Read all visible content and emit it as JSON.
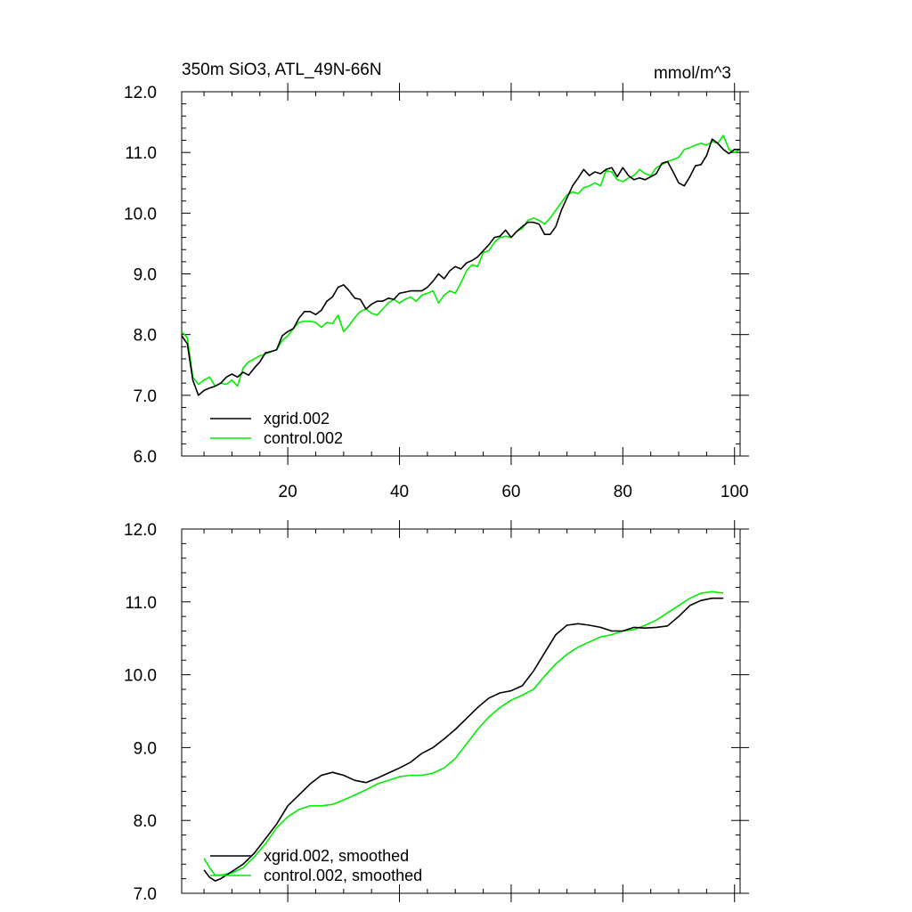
{
  "chart_data": [
    {
      "type": "line",
      "title": "350m SiO3, ATL_49N-66N",
      "units": "mmol/m^3",
      "xlabel": "",
      "ylabel": "",
      "xlim": [
        1,
        101
      ],
      "ylim": [
        6.0,
        12.0
      ],
      "xticks": [
        20,
        40,
        60,
        80,
        100
      ],
      "xtick_labels": [
        "20",
        "40",
        "60",
        "80",
        "100"
      ],
      "yticks": [
        6.0,
        7.0,
        8.0,
        9.0,
        10.0,
        11.0,
        12.0
      ],
      "ytick_labels": [
        "6.0",
        "7.0",
        "8.0",
        "9.0",
        "10.0",
        "11.0",
        "12.0"
      ],
      "legend_position": "bottom-left",
      "series": [
        {
          "name": "xgrid.002",
          "color": "#000000",
          "x": [
            1,
            2,
            3,
            4,
            5,
            6,
            7,
            8,
            9,
            10,
            11,
            12,
            13,
            14,
            15,
            16,
            17,
            18,
            19,
            20,
            21,
            22,
            23,
            24,
            25,
            26,
            27,
            28,
            29,
            30,
            31,
            32,
            33,
            34,
            35,
            36,
            37,
            38,
            39,
            40,
            41,
            42,
            43,
            44,
            45,
            46,
            47,
            48,
            49,
            50,
            51,
            52,
            53,
            54,
            55,
            56,
            57,
            58,
            59,
            60,
            61,
            62,
            63,
            64,
            65,
            66,
            67,
            68,
            69,
            70,
            71,
            72,
            73,
            74,
            75,
            76,
            77,
            78,
            79,
            80,
            81,
            82,
            83,
            84,
            85,
            86,
            87,
            88,
            89,
            90,
            91,
            92,
            93,
            94,
            95,
            96,
            97,
            98,
            99,
            100,
            101
          ],
          "values": [
            7.98,
            7.85,
            7.25,
            7.0,
            7.08,
            7.12,
            7.15,
            7.2,
            7.3,
            7.35,
            7.3,
            7.38,
            7.33,
            7.45,
            7.55,
            7.7,
            7.72,
            7.75,
            7.98,
            8.05,
            8.1,
            8.27,
            8.38,
            8.38,
            8.33,
            8.4,
            8.55,
            8.62,
            8.78,
            8.82,
            8.72,
            8.6,
            8.58,
            8.42,
            8.5,
            8.55,
            8.55,
            8.6,
            8.58,
            8.68,
            8.7,
            8.72,
            8.72,
            8.72,
            8.78,
            8.88,
            9.0,
            8.92,
            9.05,
            9.12,
            9.08,
            9.18,
            9.22,
            9.28,
            9.38,
            9.48,
            9.6,
            9.62,
            9.72,
            9.6,
            9.7,
            9.78,
            9.85,
            9.85,
            9.82,
            9.65,
            9.65,
            9.78,
            10.05,
            10.25,
            10.45,
            10.58,
            10.72,
            10.62,
            10.68,
            10.65,
            10.72,
            10.75,
            10.6,
            10.75,
            10.62,
            10.55,
            10.58,
            10.55,
            10.6,
            10.65,
            10.82,
            10.85,
            10.68,
            10.5,
            10.45,
            10.6,
            10.78,
            10.8,
            10.95,
            11.22,
            11.15,
            11.05,
            10.98,
            11.05,
            11.05
          ]
        },
        {
          "name": "control.002",
          "color": "#00ee00",
          "x": [
            1,
            2,
            3,
            4,
            5,
            6,
            7,
            8,
            9,
            10,
            11,
            12,
            13,
            14,
            15,
            16,
            17,
            18,
            19,
            20,
            21,
            22,
            23,
            24,
            25,
            26,
            27,
            28,
            29,
            30,
            31,
            32,
            33,
            34,
            35,
            36,
            37,
            38,
            39,
            40,
            41,
            42,
            43,
            44,
            45,
            46,
            47,
            48,
            49,
            50,
            51,
            52,
            53,
            54,
            55,
            56,
            57,
            58,
            59,
            60,
            61,
            62,
            63,
            64,
            65,
            66,
            67,
            68,
            69,
            70,
            71,
            72,
            73,
            74,
            75,
            76,
            77,
            78,
            79,
            80,
            81,
            82,
            83,
            84,
            85,
            86,
            87,
            88,
            89,
            90,
            91,
            92,
            93,
            94,
            95,
            96,
            97,
            98,
            99,
            100,
            101
          ],
          "values": [
            8.05,
            7.95,
            7.3,
            7.18,
            7.25,
            7.3,
            7.15,
            7.2,
            7.18,
            7.25,
            7.15,
            7.45,
            7.55,
            7.6,
            7.65,
            7.68,
            7.72,
            7.75,
            7.9,
            7.98,
            8.1,
            8.2,
            8.22,
            8.22,
            8.2,
            8.12,
            8.2,
            8.18,
            8.32,
            8.05,
            8.15,
            8.28,
            8.38,
            8.42,
            8.35,
            8.32,
            8.42,
            8.52,
            8.58,
            8.52,
            8.58,
            8.62,
            8.55,
            8.65,
            8.68,
            8.72,
            8.52,
            8.65,
            8.72,
            8.68,
            8.85,
            9.05,
            9.15,
            9.12,
            9.35,
            9.38,
            9.52,
            9.6,
            9.62,
            9.6,
            9.7,
            9.75,
            9.88,
            9.92,
            9.88,
            9.82,
            9.92,
            10.05,
            10.18,
            10.3,
            10.35,
            10.32,
            10.42,
            10.45,
            10.5,
            10.45,
            10.7,
            10.68,
            10.55,
            10.52,
            10.58,
            10.62,
            10.72,
            10.65,
            10.62,
            10.75,
            10.8,
            10.85,
            10.88,
            10.92,
            11.05,
            11.08,
            11.12,
            11.15,
            11.12,
            11.18,
            11.15,
            11.28,
            11.05,
            11.0,
            11.05
          ]
        }
      ]
    },
    {
      "type": "line",
      "title": "",
      "xlabel": "",
      "ylabel": "",
      "xlim": [
        1,
        101
      ],
      "ylim": [
        7.0,
        12.0
      ],
      "xticks": [
        20,
        40,
        60,
        80,
        100
      ],
      "xtick_labels": [],
      "yticks": [
        7.0,
        8.0,
        9.0,
        10.0,
        11.0,
        12.0
      ],
      "ytick_labels": [
        "7.0",
        "8.0",
        "9.0",
        "10.0",
        "11.0",
        "12.0"
      ],
      "legend_position": "bottom-left",
      "series": [
        {
          "name": "xgrid.002, smoothed",
          "color": "#000000",
          "x": [
            5,
            6,
            7,
            8,
            10,
            12,
            14,
            16,
            18,
            20,
            22,
            24,
            26,
            28,
            30,
            32,
            34,
            36,
            38,
            40,
            42,
            44,
            46,
            48,
            50,
            52,
            54,
            56,
            58,
            60,
            62,
            64,
            66,
            68,
            70,
            72,
            74,
            76,
            78,
            80,
            82,
            84,
            86,
            88,
            90,
            92,
            94,
            96,
            98
          ],
          "values": [
            7.32,
            7.22,
            7.17,
            7.2,
            7.3,
            7.4,
            7.55,
            7.75,
            7.95,
            8.2,
            8.35,
            8.5,
            8.62,
            8.66,
            8.62,
            8.55,
            8.52,
            8.58,
            8.65,
            8.72,
            8.8,
            8.92,
            9.0,
            9.12,
            9.25,
            9.4,
            9.55,
            9.68,
            9.75,
            9.78,
            9.85,
            10.05,
            10.3,
            10.55,
            10.68,
            10.7,
            10.68,
            10.65,
            10.6,
            10.6,
            10.65,
            10.64,
            10.65,
            10.67,
            10.8,
            10.95,
            11.02,
            11.05,
            11.05
          ]
        },
        {
          "name": "control.002, smoothed",
          "color": "#00ee00",
          "x": [
            5,
            6,
            7,
            8,
            10,
            12,
            14,
            16,
            18,
            20,
            22,
            24,
            26,
            28,
            30,
            32,
            34,
            36,
            38,
            40,
            42,
            44,
            46,
            48,
            50,
            52,
            54,
            56,
            58,
            60,
            62,
            64,
            66,
            68,
            70,
            72,
            74,
            76,
            78,
            80,
            82,
            84,
            86,
            88,
            90,
            92,
            94,
            96,
            98
          ],
          "values": [
            7.48,
            7.35,
            7.25,
            7.25,
            7.28,
            7.35,
            7.5,
            7.68,
            7.9,
            8.05,
            8.15,
            8.2,
            8.2,
            8.22,
            8.28,
            8.35,
            8.42,
            8.5,
            8.55,
            8.6,
            8.62,
            8.62,
            8.65,
            8.72,
            8.85,
            9.05,
            9.25,
            9.42,
            9.55,
            9.65,
            9.72,
            9.8,
            9.98,
            10.15,
            10.28,
            10.38,
            10.45,
            10.52,
            10.55,
            10.6,
            10.62,
            10.68,
            10.75,
            10.85,
            10.95,
            11.05,
            11.12,
            11.14,
            11.12
          ]
        }
      ]
    }
  ]
}
